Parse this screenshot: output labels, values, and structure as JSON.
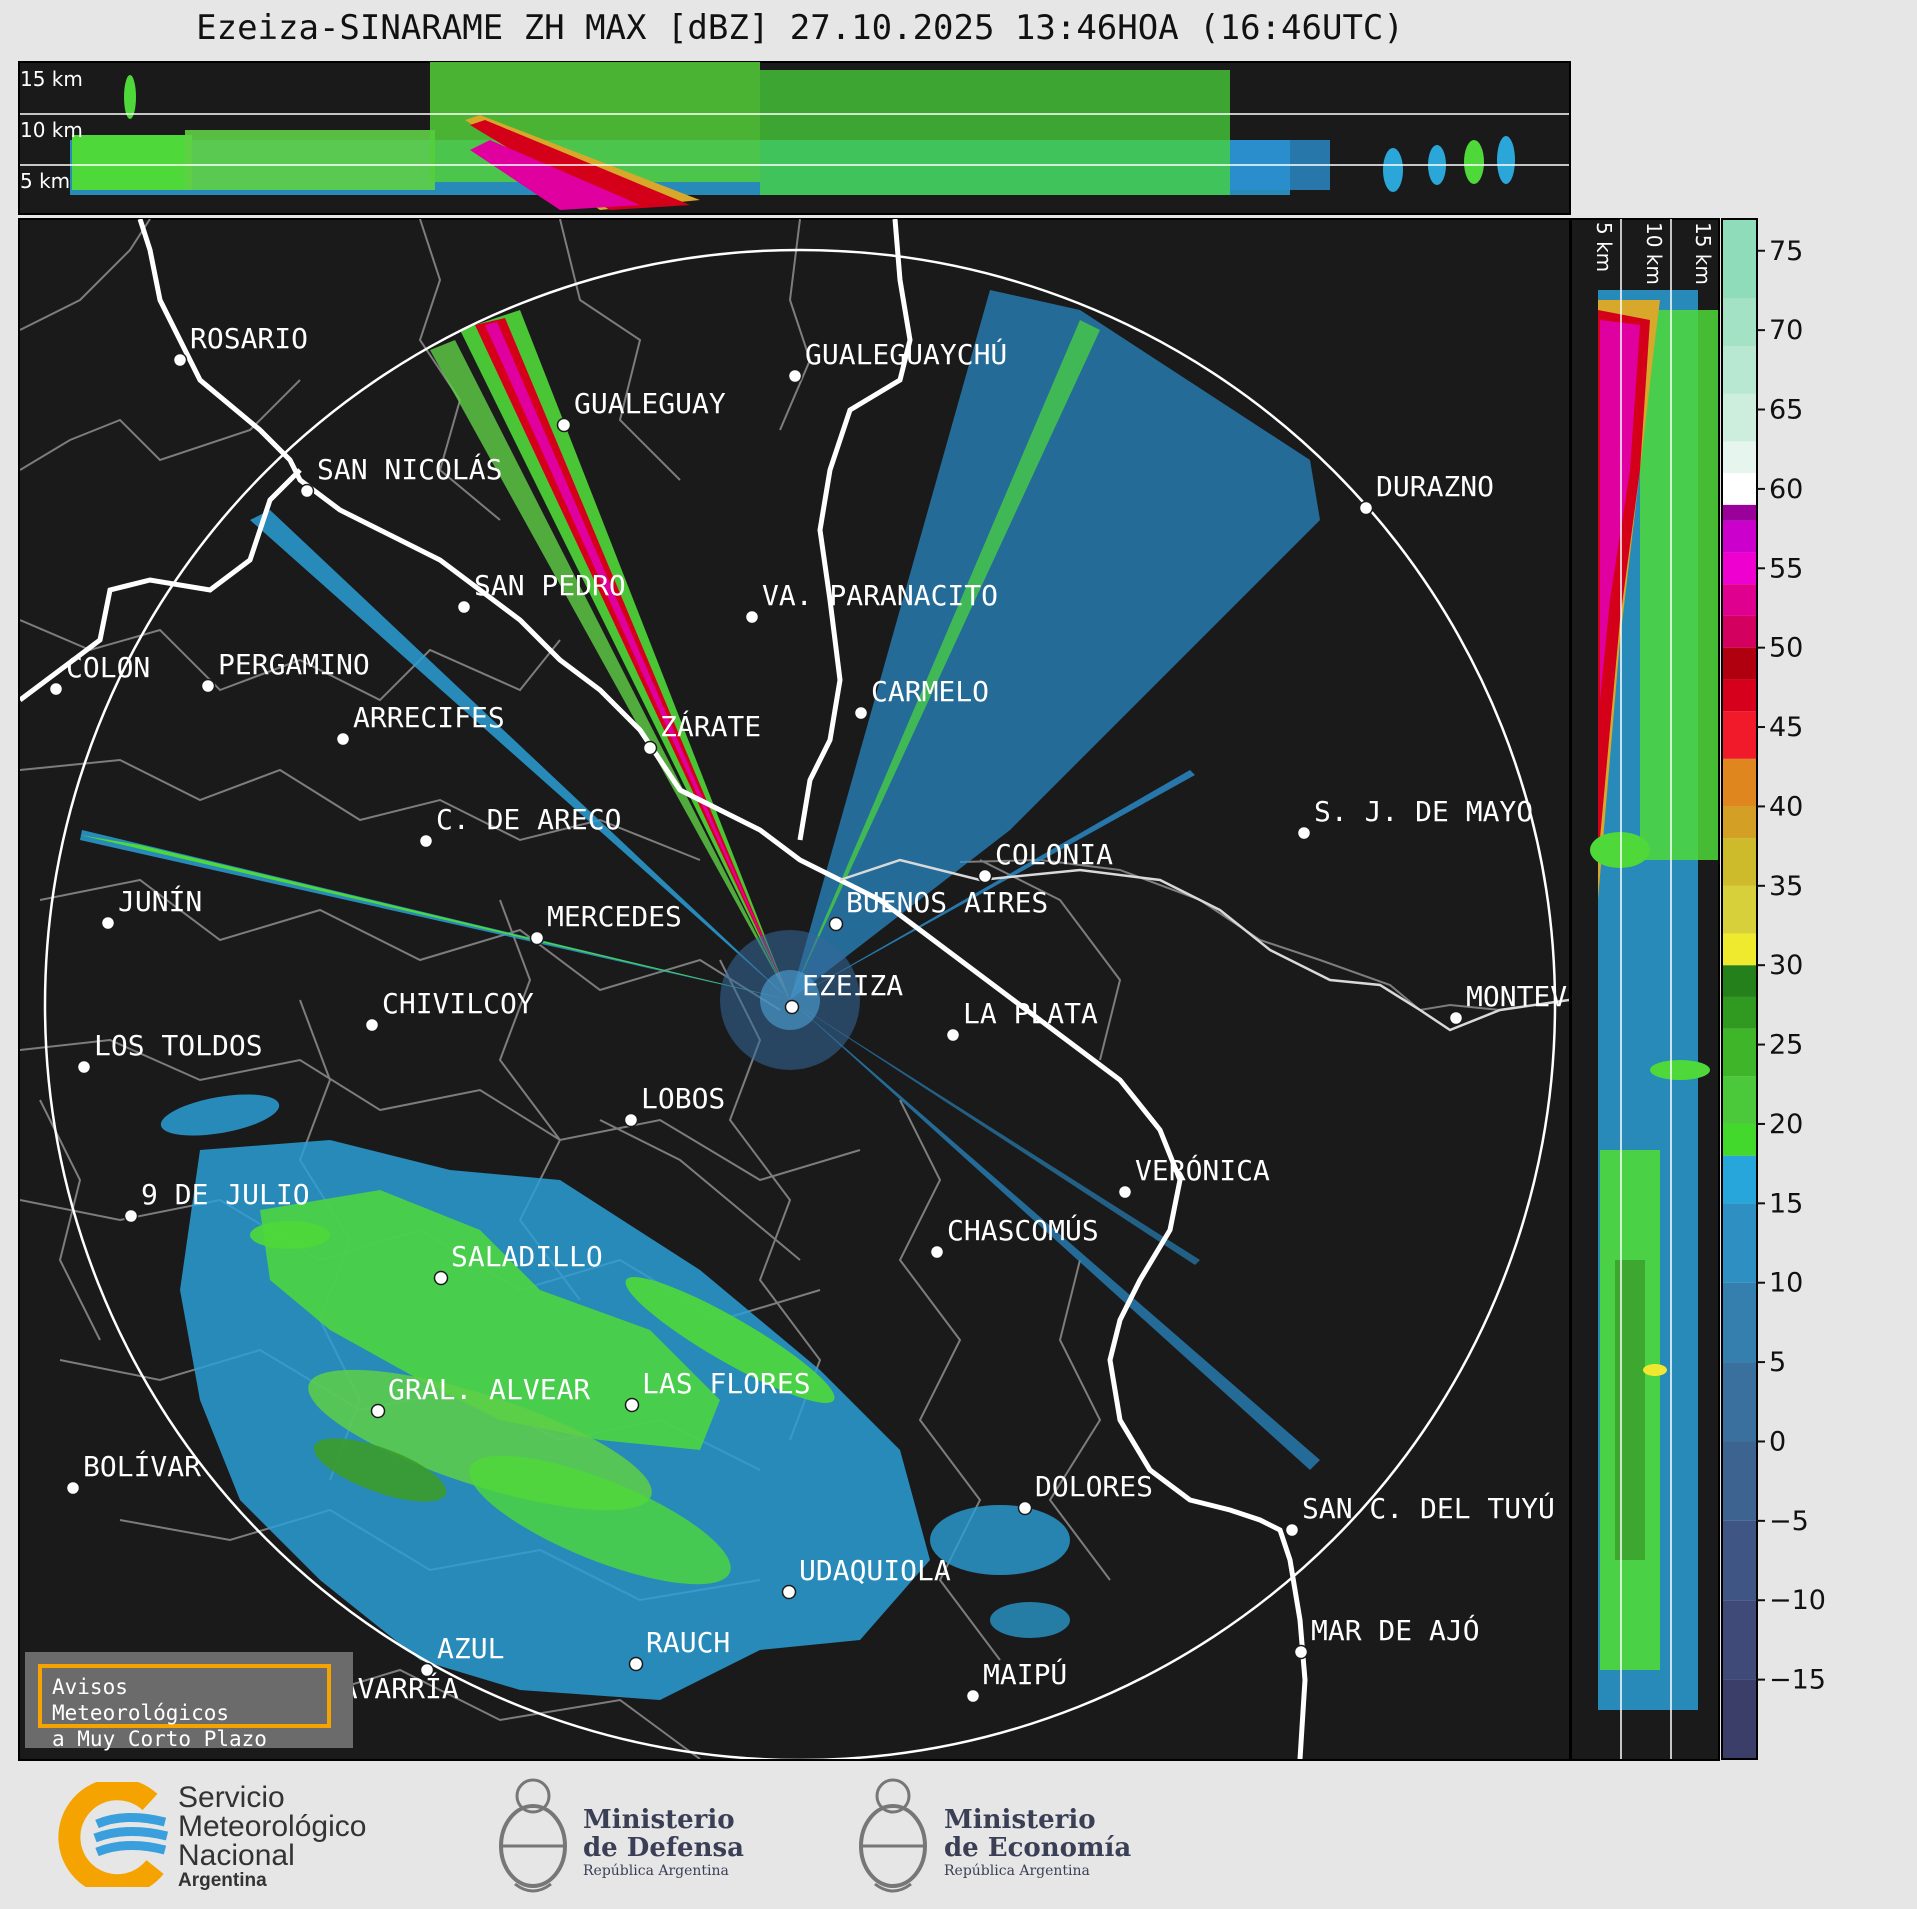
{
  "title": "Ezeiza-SINARAME ZH MAX [dBZ] 27.10.2025 13:46HOA (16:46UTC)",
  "top_panel": {
    "km_labels": [
      "15 km",
      "10 km",
      "5 km"
    ]
  },
  "side_panel": {
    "km_labels": [
      "5 km",
      "10 km",
      "15 km"
    ]
  },
  "colorbar": {
    "ticks": [
      "75",
      "70",
      "65",
      "60",
      "55",
      "50",
      "45",
      "40",
      "35",
      "30",
      "25",
      "20",
      "15",
      "10",
      "5",
      "0",
      "−5",
      "−10",
      "−15"
    ],
    "values": [
      75,
      70,
      65,
      60,
      55,
      50,
      45,
      40,
      35,
      30,
      25,
      20,
      15,
      10,
      5,
      0,
      -5,
      -10,
      -15
    ]
  },
  "cities": [
    {
      "name": "ROSARIO"
    },
    {
      "name": "GUALEGUAYCHÚ"
    },
    {
      "name": "GUALEGUAY"
    },
    {
      "name": "SAN NICOLÁS"
    },
    {
      "name": "DURAZNO"
    },
    {
      "name": "SAN PEDRO"
    },
    {
      "name": "VA. PARANACITO"
    },
    {
      "name": "COLON"
    },
    {
      "name": "PERGAMINO"
    },
    {
      "name": "CARMELO"
    },
    {
      "name": "ARRECIFES"
    },
    {
      "name": "ZÁRATE"
    },
    {
      "name": "S. J. DE MAYO"
    },
    {
      "name": "C. DE ARECO"
    },
    {
      "name": "COLONIA"
    },
    {
      "name": "JUNÍN"
    },
    {
      "name": "BUENOS AIRES"
    },
    {
      "name": "MERCEDES"
    },
    {
      "name": "EZEIZA"
    },
    {
      "name": "MONTEV"
    },
    {
      "name": "CHIVILCOY"
    },
    {
      "name": "LA PLATA"
    },
    {
      "name": "LOS TOLDOS"
    },
    {
      "name": "LOBOS"
    },
    {
      "name": "VERÓNICA"
    },
    {
      "name": "9 DE JULIO"
    },
    {
      "name": "CHASCOMÚS"
    },
    {
      "name": "SALADILLO"
    },
    {
      "name": "GRAL. ALVEAR"
    },
    {
      "name": "LAS FLORES"
    },
    {
      "name": "BOLÍVAR"
    },
    {
      "name": "DOLORES"
    },
    {
      "name": "SAN C. DEL TUYÚ"
    },
    {
      "name": "UDAQUIOLA"
    },
    {
      "name": "MAR DE AJÓ"
    },
    {
      "name": "AZUL"
    },
    {
      "name": "RAUCH"
    },
    {
      "name": "OLAVARRÍA"
    },
    {
      "name": "MAIPÚ"
    }
  ],
  "alert_box": {
    "line1": "Avisos Meteorológicos",
    "line2": "a Muy Corto Plazo"
  },
  "footer": {
    "smn": {
      "line1": "Servicio",
      "line2": "Meteorológico",
      "line3": "Nacional",
      "line4": "Argentina"
    },
    "defensa": {
      "line1": "Ministerio",
      "line2": "de Defensa",
      "line3": "República Argentina"
    },
    "economia": {
      "line1": "Ministerio",
      "line2": "de Economía",
      "line3": "República Argentina"
    }
  },
  "colors": {
    "background": "#1a1a1a",
    "page": "#e6e6e6",
    "coast": "#ffffff",
    "borders": "#808080",
    "accent_box": "#f5a300"
  }
}
